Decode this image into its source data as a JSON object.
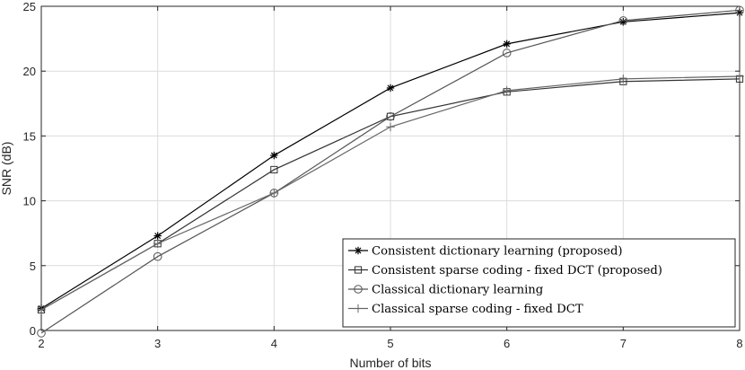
{
  "chart_data": {
    "type": "line",
    "title": "",
    "xlabel": "Number of bits",
    "ylabel": "SNR (dB)",
    "xlim": [
      2,
      8
    ],
    "ylim": [
      0,
      25
    ],
    "xticks": [
      2,
      3,
      4,
      5,
      6,
      7,
      8
    ],
    "yticks": [
      0,
      5,
      10,
      15,
      20,
      25
    ],
    "grid": true,
    "legend_position": "bottom-right",
    "x": [
      2,
      3,
      4,
      5,
      6,
      7,
      8
    ],
    "series": [
      {
        "name": "Consistent dictionary learning (proposed)",
        "values": [
          1.7,
          7.3,
          13.5,
          18.7,
          22.1,
          23.8,
          24.5
        ],
        "color": "#000000",
        "marker": "asterisk"
      },
      {
        "name": "Consistent sparse coding - fixed DCT (proposed)",
        "values": [
          1.6,
          6.7,
          12.4,
          16.5,
          18.4,
          19.2,
          19.4
        ],
        "color": "#333333",
        "marker": "square"
      },
      {
        "name": "Classical dictionary learning",
        "values": [
          -0.2,
          5.7,
          10.6,
          16.5,
          21.4,
          23.9,
          24.7
        ],
        "color": "#555555",
        "marker": "circle"
      },
      {
        "name": "Classical sparse coding - fixed DCT",
        "values": [
          1.6,
          6.7,
          10.6,
          15.7,
          18.5,
          19.4,
          19.6
        ],
        "color": "#666666",
        "marker": "plus"
      }
    ]
  }
}
